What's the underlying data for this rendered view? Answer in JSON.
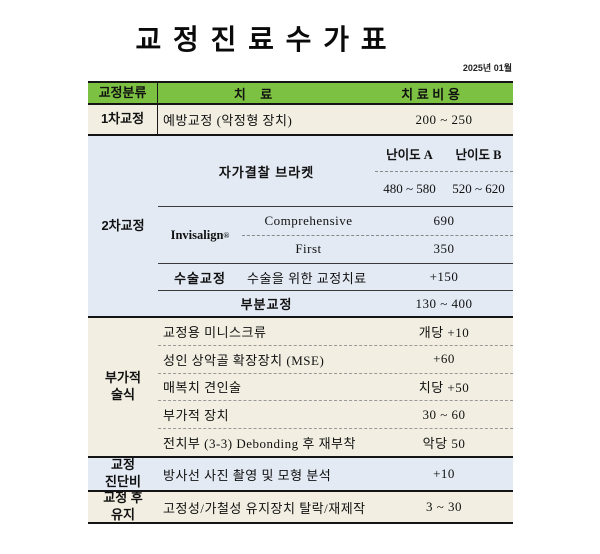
{
  "page": {
    "title": "교 정 진 료 수 가 표",
    "date": "2025년 01월"
  },
  "colors": {
    "header_green": "#7CC142",
    "section_cream": "#F2EFE2",
    "section_blue": "#E3EAF4",
    "border_black": "#141414"
  },
  "header": {
    "category": "교정분류",
    "treatment": "치    료",
    "cost": "치 료 비 용"
  },
  "sections": {
    "primary": {
      "category": "1차교정",
      "treatment": "예방교정 (악정형 장치)",
      "cost": "200 ~ 250"
    },
    "secondary": {
      "category": "2차교정",
      "bracket": {
        "label": "자가결찰 브라켓",
        "grade_a": "난이도 A",
        "grade_b": "난이도 B",
        "price_a": "480 ~ 580",
        "price_b": "520 ~ 620"
      },
      "invisalign": {
        "label": "Invisalign",
        "reg_mark": "®",
        "rows": [
          {
            "name": "Comprehensive",
            "cost": "690"
          },
          {
            "name": "First",
            "cost": "350"
          }
        ]
      },
      "surgery": {
        "label": "수술교정",
        "treatment": "수술을 위한 교정치료",
        "cost": "+150"
      },
      "partial": {
        "label": "부분교정",
        "cost": "130 ~ 400"
      }
    },
    "additional": {
      "category_line1": "부가적",
      "category_line2": "술식",
      "rows": [
        {
          "treatment": "교정용 미니스크류",
          "cost": "개당 +10"
        },
        {
          "treatment": "성인 상악골 확장장치 (MSE)",
          "cost": "+60"
        },
        {
          "treatment": "매복치 견인술",
          "cost": "치당 +50"
        },
        {
          "treatment": "부가적 장치",
          "cost": "30 ~ 60"
        },
        {
          "treatment": "전치부 (3-3) Debonding 후 재부착",
          "cost": "악당 50"
        }
      ]
    },
    "diagnosis": {
      "category_line1": "교정",
      "category_line2": "진단비",
      "treatment": "방사선 사진 촬영 및 모형 분석",
      "cost": "+10"
    },
    "retention": {
      "category_line1": "교정 후",
      "category_line2": "유지",
      "treatment": "고정성/가철성 유지장치 탈락/재제작",
      "cost": "3 ~ 30"
    }
  }
}
